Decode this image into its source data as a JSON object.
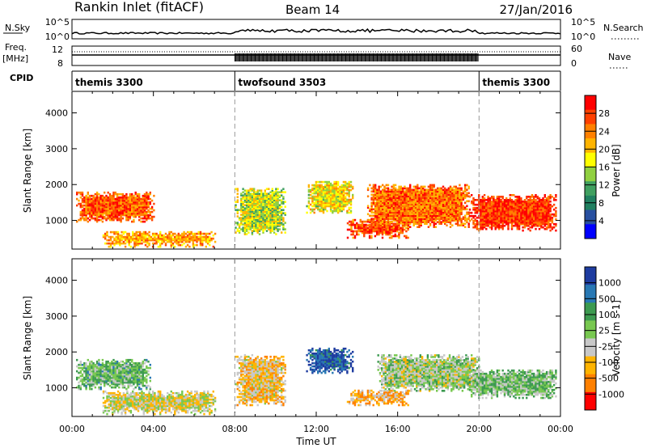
{
  "header": {
    "station": "Rankin Inlet (fitACF)",
    "beam": "Beam 14",
    "date": "27/Jan/2016"
  },
  "strip_labels": {
    "nsky": "N.Sky",
    "nsearch": "N.Search",
    "freq": "Freq.",
    "freq_unit": "[MHz]",
    "nave": "Nave",
    "cpid": "CPID"
  },
  "strip_ticks": {
    "nsky_left": [
      "10^5",
      "10^0"
    ],
    "nsky_right": [
      "10^5",
      "10^0"
    ],
    "freq_left": [
      "12",
      "8"
    ],
    "nave_right": [
      "60",
      "0"
    ]
  },
  "cpid_segments": [
    {
      "label": "themis 3300",
      "start_h": 0,
      "end_h": 8
    },
    {
      "label": "twofsound 3503",
      "start_h": 8,
      "end_h": 20
    },
    {
      "label": "themis 3300",
      "start_h": 20,
      "end_h": 24
    }
  ],
  "chart_data": [
    {
      "type": "heatmap",
      "parameter": "Power",
      "xlabel": "",
      "ylabel": "Slant Range [km]",
      "xlim": [
        0,
        24
      ],
      "ylim": [
        200,
        4600
      ],
      "yticks": [
        1000,
        2000,
        3000,
        4000
      ],
      "colorbar": {
        "label": "Power [dB]",
        "ticks": [
          "28",
          "24",
          "20",
          "16",
          "12",
          "8",
          "4"
        ],
        "colors": [
          "#ff0000",
          "#ff4000",
          "#ff8000",
          "#ffb400",
          "#ffff00",
          "#90d040",
          "#40a060",
          "#208060",
          "#2850a0",
          "#0000ff"
        ]
      },
      "regions": [
        {
          "t0": 0.2,
          "t1": 4.0,
          "r0": 950,
          "r1": 1800,
          "value": 26
        },
        {
          "t0": 1.5,
          "t1": 7.0,
          "r0": 250,
          "r1": 700,
          "value": 22
        },
        {
          "t0": 8.0,
          "t1": 10.5,
          "r0": 600,
          "r1": 1900,
          "value": 16
        },
        {
          "t0": 11.5,
          "t1": 13.8,
          "r0": 1200,
          "r1": 2100,
          "value": 18
        },
        {
          "t0": 13.5,
          "t1": 16.5,
          "r0": 500,
          "r1": 1000,
          "value": 27
        },
        {
          "t0": 14.5,
          "t1": 19.5,
          "r0": 800,
          "r1": 2000,
          "value": 25
        },
        {
          "t0": 19.5,
          "t1": 23.8,
          "r0": 700,
          "r1": 1700,
          "value": 28
        }
      ]
    },
    {
      "type": "heatmap",
      "parameter": "Velocity",
      "xlabel": "Time UT",
      "ylabel": "Slant Range [km]",
      "xlim": [
        0,
        24
      ],
      "ylim": [
        200,
        4600
      ],
      "yticks": [
        1000,
        2000,
        3000,
        4000
      ],
      "xticks": [
        "00:00",
        "04:00",
        "08:00",
        "12:00",
        "16:00",
        "20:00",
        "00:00"
      ],
      "colorbar": {
        "label": "Velocity [m s-1]",
        "ticks": [
          "1000",
          "500",
          "100",
          "25",
          "-25",
          "-100",
          "-500",
          "-1000"
        ],
        "colors": [
          "#1e3ca0",
          "#2878b4",
          "#3c9a50",
          "#78c850",
          "#c8c8c8",
          "#ffb400",
          "#ff8000",
          "#ff0000"
        ]
      },
      "regions": [
        {
          "t0": 0.2,
          "t1": 3.8,
          "r0": 950,
          "r1": 1800,
          "value": 200
        },
        {
          "t0": 1.5,
          "t1": 7.0,
          "r0": 250,
          "r1": 900,
          "value": -150
        },
        {
          "t0": 8.0,
          "t1": 10.5,
          "r0": 500,
          "r1": 1900,
          "value": -300
        },
        {
          "t0": 11.5,
          "t1": 13.8,
          "r0": 1400,
          "r1": 2100,
          "value": 800
        },
        {
          "t0": 13.5,
          "t1": 16.5,
          "r0": 500,
          "r1": 950,
          "value": -400
        },
        {
          "t0": 15.0,
          "t1": 20.0,
          "r0": 900,
          "r1": 1900,
          "value": 0
        },
        {
          "t0": 19.5,
          "t1": 23.8,
          "r0": 700,
          "r1": 1500,
          "value": 150
        }
      ]
    }
  ]
}
